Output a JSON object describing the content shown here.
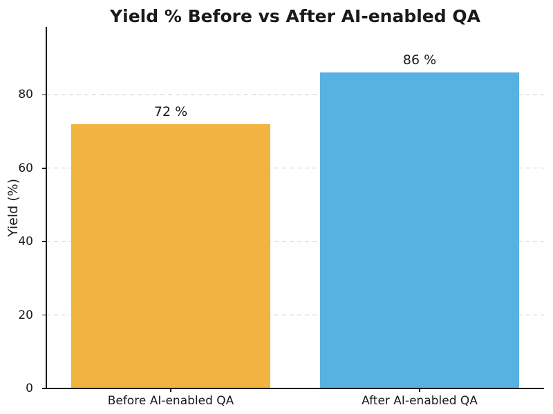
{
  "window": {
    "background": "#ffffff"
  },
  "chart_data": {
    "type": "bar",
    "title": "Yield % Before vs After AI-enabled QA",
    "xlabel": "",
    "ylabel": "Yield (%)",
    "categories": [
      "Before AI-enabled QA",
      "After AI-enabled QA"
    ],
    "values": [
      72,
      86
    ],
    "bar_labels": [
      "72 %",
      "86 %"
    ],
    "bar_colors": [
      "#f2b441",
      "#57b2e1"
    ],
    "yticks": [
      0,
      20,
      40,
      60,
      80
    ],
    "ytick_labels": [
      "0",
      "20",
      "40",
      "60",
      "80"
    ],
    "ylim": [
      0,
      98.5
    ],
    "grid": "horizontal-dashed",
    "grid_color": "#c9c9c9",
    "axis_color": "#1a1a1a",
    "text_color": "#1a1a1a",
    "legend": "none"
  }
}
